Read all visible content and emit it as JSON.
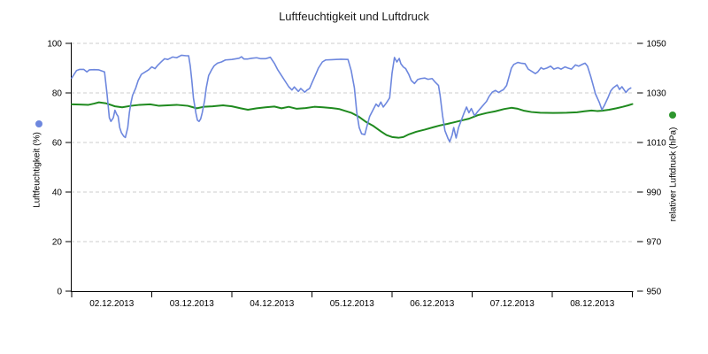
{
  "chart_data": {
    "type": "line",
    "title": "Luftfeuchtigkeit und Luftdruck",
    "grid": "horizontal-dashed",
    "legend_position": "axis-titles",
    "x_axis": {
      "tick_labels": [
        "02.12.2013",
        "03.12.2013",
        "04.12.2013",
        "05.12.2013",
        "06.12.2013",
        "07.12.2013",
        "08.12.2013"
      ],
      "labels_between_ticks": true,
      "range_days": [
        0,
        7
      ]
    },
    "y_axis_left": {
      "label": "Luftfeuchtigkeit (%)",
      "ticks": [
        0,
        20,
        40,
        60,
        80,
        100
      ],
      "range": [
        0,
        100
      ],
      "marker": "dot"
    },
    "y_axis_right": {
      "label": "relativer Luftdruck (hPa)",
      "ticks": [
        950,
        970,
        990,
        1010,
        1030,
        1050
      ],
      "range": [
        950,
        1050
      ],
      "marker": "dot"
    },
    "series": [
      {
        "name": "Luftfeuchtigkeit",
        "axis": "left",
        "unit": "%",
        "points": [
          [
            0,
            86
          ],
          [
            0.03,
            87.5
          ],
          [
            0.06,
            89
          ],
          [
            0.1,
            89.5
          ],
          [
            0.15,
            89.5
          ],
          [
            0.19,
            88.5
          ],
          [
            0.22,
            89.3
          ],
          [
            0.28,
            89.4
          ],
          [
            0.34,
            89.3
          ],
          [
            0.41,
            88.5
          ],
          [
            0.44,
            80
          ],
          [
            0.47,
            70
          ],
          [
            0.49,
            68.5
          ],
          [
            0.52,
            70
          ],
          [
            0.54,
            73
          ],
          [
            0.56,
            71.5
          ],
          [
            0.58,
            70.5
          ],
          [
            0.6,
            66
          ],
          [
            0.62,
            64
          ],
          [
            0.65,
            62.5
          ],
          [
            0.67,
            62
          ],
          [
            0.7,
            66
          ],
          [
            0.72,
            72
          ],
          [
            0.74,
            76
          ],
          [
            0.76,
            79
          ],
          [
            0.8,
            82
          ],
          [
            0.83,
            85
          ],
          [
            0.87,
            87.5
          ],
          [
            0.92,
            88.5
          ],
          [
            0.96,
            89.3
          ],
          [
            1,
            90.5
          ],
          [
            1.04,
            89.8
          ],
          [
            1.07,
            91
          ],
          [
            1.12,
            92.6
          ],
          [
            1.16,
            93.8
          ],
          [
            1.2,
            93.5
          ],
          [
            1.26,
            94.5
          ],
          [
            1.31,
            94.2
          ],
          [
            1.37,
            95.2
          ],
          [
            1.43,
            95
          ],
          [
            1.46,
            95
          ],
          [
            1.48,
            91
          ],
          [
            1.5,
            85
          ],
          [
            1.52,
            78
          ],
          [
            1.55,
            72
          ],
          [
            1.57,
            69
          ],
          [
            1.59,
            68.5
          ],
          [
            1.61,
            69.5
          ],
          [
            1.63,
            72
          ],
          [
            1.66,
            77
          ],
          [
            1.68,
            82
          ],
          [
            1.71,
            87
          ],
          [
            1.75,
            89.5
          ],
          [
            1.78,
            91
          ],
          [
            1.82,
            92
          ],
          [
            1.87,
            92.5
          ],
          [
            1.92,
            93.3
          ],
          [
            2,
            93.5
          ],
          [
            2.09,
            94
          ],
          [
            2.12,
            94.6
          ],
          [
            2.15,
            93.7
          ],
          [
            2.2,
            93.7
          ],
          [
            2.25,
            94
          ],
          [
            2.31,
            94.2
          ],
          [
            2.36,
            93.8
          ],
          [
            2.42,
            93.8
          ],
          [
            2.48,
            94.4
          ],
          [
            2.53,
            92
          ],
          [
            2.57,
            89.5
          ],
          [
            2.62,
            87
          ],
          [
            2.66,
            85
          ],
          [
            2.71,
            82.5
          ],
          [
            2.75,
            81.2
          ],
          [
            2.78,
            82.4
          ],
          [
            2.83,
            80.6
          ],
          [
            2.86,
            81.8
          ],
          [
            2.91,
            80.3
          ],
          [
            2.94,
            81.2
          ],
          [
            2.97,
            81.8
          ],
          [
            3.01,
            84.8
          ],
          [
            3.05,
            87.7
          ],
          [
            3.08,
            90
          ],
          [
            3.13,
            92.5
          ],
          [
            3.17,
            93.3
          ],
          [
            3.25,
            93.4
          ],
          [
            3.36,
            93.6
          ],
          [
            3.45,
            93.5
          ],
          [
            3.49,
            89
          ],
          [
            3.53,
            82
          ],
          [
            3.56,
            72
          ],
          [
            3.59,
            66
          ],
          [
            3.62,
            63.5
          ],
          [
            3.66,
            63.2
          ],
          [
            3.69,
            67
          ],
          [
            3.72,
            70.5
          ],
          [
            3.76,
            73
          ],
          [
            3.8,
            75.5
          ],
          [
            3.83,
            74.5
          ],
          [
            3.86,
            76.3
          ],
          [
            3.89,
            74.3
          ],
          [
            3.93,
            76
          ],
          [
            3.97,
            78
          ],
          [
            4,
            88
          ],
          [
            4.03,
            94.3
          ],
          [
            4.06,
            92.5
          ],
          [
            4.09,
            93.9
          ],
          [
            4.11,
            91.8
          ],
          [
            4.14,
            90.5
          ],
          [
            4.17,
            89.8
          ],
          [
            4.21,
            87.4
          ],
          [
            4.24,
            85
          ],
          [
            4.28,
            83.8
          ],
          [
            4.32,
            85.4
          ],
          [
            4.36,
            85.8
          ],
          [
            4.41,
            86
          ],
          [
            4.45,
            85.5
          ],
          [
            4.5,
            85.8
          ],
          [
            4.54,
            84.3
          ],
          [
            4.58,
            83
          ],
          [
            4.6,
            79
          ],
          [
            4.63,
            71
          ],
          [
            4.66,
            64.8
          ],
          [
            4.7,
            61.5
          ],
          [
            4.72,
            60.3
          ],
          [
            4.75,
            63
          ],
          [
            4.77,
            66
          ],
          [
            4.8,
            61.8
          ],
          [
            4.83,
            66
          ],
          [
            4.87,
            69.4
          ],
          [
            4.9,
            72
          ],
          [
            4.93,
            74.3
          ],
          [
            4.96,
            72
          ],
          [
            4.99,
            73.7
          ],
          [
            5.03,
            70.8
          ],
          [
            5.07,
            72.5
          ],
          [
            5.11,
            74
          ],
          [
            5.15,
            75.5
          ],
          [
            5.18,
            76.6
          ],
          [
            5.21,
            78.5
          ],
          [
            5.25,
            80.3
          ],
          [
            5.29,
            81
          ],
          [
            5.33,
            80.2
          ],
          [
            5.36,
            80.8
          ],
          [
            5.39,
            81.3
          ],
          [
            5.43,
            83
          ],
          [
            5.46,
            86.5
          ],
          [
            5.49,
            90
          ],
          [
            5.52,
            91.5
          ],
          [
            5.57,
            92.3
          ],
          [
            5.61,
            92
          ],
          [
            5.66,
            91.8
          ],
          [
            5.7,
            89.6
          ],
          [
            5.75,
            88.6
          ],
          [
            5.79,
            87.8
          ],
          [
            5.82,
            88.5
          ],
          [
            5.86,
            90.2
          ],
          [
            5.89,
            89.6
          ],
          [
            5.93,
            90
          ],
          [
            5.98,
            90.8
          ],
          [
            6.02,
            89.6
          ],
          [
            6.07,
            90.2
          ],
          [
            6.11,
            89.6
          ],
          [
            6.16,
            90.5
          ],
          [
            6.2,
            90
          ],
          [
            6.24,
            89.6
          ],
          [
            6.29,
            91.3
          ],
          [
            6.33,
            90.8
          ],
          [
            6.38,
            91.6
          ],
          [
            6.41,
            92
          ],
          [
            6.44,
            90.8
          ],
          [
            6.48,
            86.7
          ],
          [
            6.51,
            83.2
          ],
          [
            6.54,
            79.6
          ],
          [
            6.59,
            76
          ],
          [
            6.62,
            73.2
          ],
          [
            6.65,
            74.9
          ],
          [
            6.7,
            78.4
          ],
          [
            6.73,
            80.8
          ],
          [
            6.76,
            82
          ],
          [
            6.81,
            83.2
          ],
          [
            6.84,
            81.4
          ],
          [
            6.87,
            82.5
          ],
          [
            6.92,
            80.2
          ],
          [
            6.95,
            81.4
          ],
          [
            6.98,
            82
          ]
        ]
      },
      {
        "name": "relativer Luftdruck",
        "axis": "right",
        "unit": "hPa",
        "points": [
          [
            0,
            1025.4
          ],
          [
            0.1,
            1025.3
          ],
          [
            0.21,
            1025.2
          ],
          [
            0.28,
            1025.7
          ],
          [
            0.34,
            1026.2
          ],
          [
            0.43,
            1025.8
          ],
          [
            0.54,
            1024.6
          ],
          [
            0.63,
            1024.2
          ],
          [
            0.74,
            1024.8
          ],
          [
            0.85,
            1025.2
          ],
          [
            0.98,
            1025.4
          ],
          [
            1.09,
            1024.8
          ],
          [
            1.2,
            1025
          ],
          [
            1.31,
            1025.2
          ],
          [
            1.45,
            1024.8
          ],
          [
            1.56,
            1023.8
          ],
          [
            1.65,
            1024.4
          ],
          [
            1.76,
            1024.6
          ],
          [
            1.89,
            1025
          ],
          [
            2,
            1024.6
          ],
          [
            2.11,
            1023.8
          ],
          [
            2.2,
            1023.2
          ],
          [
            2.31,
            1023.8
          ],
          [
            2.42,
            1024.2
          ],
          [
            2.53,
            1024.5
          ],
          [
            2.62,
            1023.8
          ],
          [
            2.71,
            1024.4
          ],
          [
            2.81,
            1023.6
          ],
          [
            2.92,
            1023.9
          ],
          [
            3.03,
            1024.4
          ],
          [
            3.14,
            1024.2
          ],
          [
            3.25,
            1023.9
          ],
          [
            3.34,
            1023.5
          ],
          [
            3.41,
            1022.8
          ],
          [
            3.49,
            1022
          ],
          [
            3.58,
            1020.5
          ],
          [
            3.67,
            1018.4
          ],
          [
            3.76,
            1016.8
          ],
          [
            3.86,
            1014.5
          ],
          [
            3.93,
            1013
          ],
          [
            4,
            1012.2
          ],
          [
            4.08,
            1011.9
          ],
          [
            4.14,
            1012.2
          ],
          [
            4.21,
            1013.3
          ],
          [
            4.3,
            1014.3
          ],
          [
            4.41,
            1015.2
          ],
          [
            4.52,
            1016.2
          ],
          [
            4.6,
            1016.9
          ],
          [
            4.69,
            1017.5
          ],
          [
            4.77,
            1018.1
          ],
          [
            4.87,
            1018.9
          ],
          [
            4.96,
            1019.6
          ],
          [
            5.07,
            1021
          ],
          [
            5.18,
            1021.9
          ],
          [
            5.29,
            1022.6
          ],
          [
            5.4,
            1023.5
          ],
          [
            5.49,
            1024
          ],
          [
            5.57,
            1023.6
          ],
          [
            5.65,
            1022.8
          ],
          [
            5.74,
            1022.3
          ],
          [
            5.85,
            1022
          ],
          [
            6.01,
            1021.9
          ],
          [
            6.18,
            1022
          ],
          [
            6.31,
            1022.2
          ],
          [
            6.4,
            1022.6
          ],
          [
            6.49,
            1022.9
          ],
          [
            6.56,
            1022.7
          ],
          [
            6.62,
            1022.8
          ],
          [
            6.71,
            1023.2
          ],
          [
            6.8,
            1023.8
          ],
          [
            6.88,
            1024.4
          ],
          [
            6.95,
            1025
          ],
          [
            7,
            1025.5
          ]
        ]
      }
    ]
  },
  "colors": {
    "humidity_blue": "#6d87de",
    "pressure_green": "#1f8a1f",
    "pressure_dot_green": "#2d962d",
    "gridline": "#cccccc",
    "axis": "#000000"
  }
}
